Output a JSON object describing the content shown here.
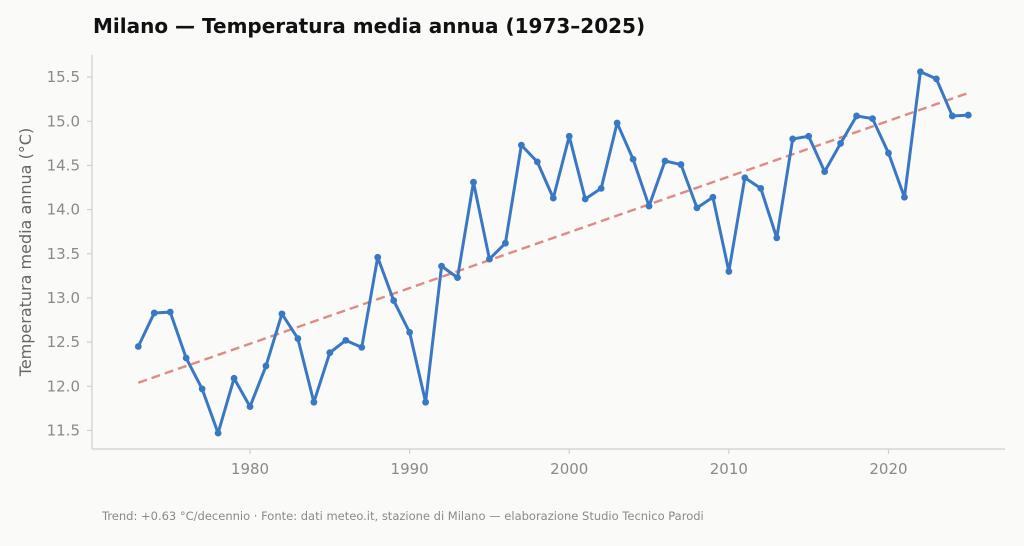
{
  "chart_data": {
    "type": "line",
    "title": "Milano — Temperatura media annua (1973–2025)",
    "xlabel": "",
    "ylabel": "Temperatura media annua (°C)",
    "xlim": [
      1970.1,
      2027.3
    ],
    "ylim": [
      11.29,
      15.75
    ],
    "x_ticks": [
      1980,
      1990,
      2000,
      2010,
      2020
    ],
    "x_tick_labels": [
      "1980",
      "1990",
      "2000",
      "2010",
      "2020"
    ],
    "y_ticks": [
      11.5,
      12.0,
      12.5,
      13.0,
      13.5,
      14.0,
      14.5,
      15.0,
      15.5
    ],
    "y_tick_labels": [
      "11.5",
      "12.0",
      "12.5",
      "13.0",
      "13.5",
      "14.0",
      "14.5",
      "15.0",
      "15.5"
    ],
    "grid": false,
    "series": [
      {
        "color": "#3a78c3",
        "x": [
          1973,
          1974,
          1975,
          1976,
          1977,
          1978,
          1979,
          1980,
          1981,
          1982,
          1983,
          1984,
          1985,
          1986,
          1987,
          1988,
          1989,
          1990,
          1991,
          1992,
          1993,
          1994,
          1995,
          1996,
          1997,
          1998,
          1999,
          2000,
          2001,
          2002,
          2003,
          2004,
          2005,
          2006,
          2007,
          2008,
          2009,
          2010,
          2011,
          2012,
          2013,
          2014,
          2015,
          2016,
          2017,
          2018,
          2019,
          2020,
          2021,
          2022,
          2023,
          2024,
          2025
        ],
        "values": [
          12.45,
          12.83,
          12.84,
          12.32,
          11.97,
          11.47,
          12.09,
          11.77,
          12.23,
          12.82,
          12.54,
          11.82,
          12.38,
          12.52,
          12.44,
          13.46,
          12.97,
          12.61,
          11.82,
          13.36,
          13.23,
          14.31,
          13.44,
          13.62,
          14.73,
          14.54,
          14.13,
          14.83,
          14.12,
          14.24,
          14.98,
          14.57,
          14.04,
          14.55,
          14.51,
          14.02,
          14.14,
          13.3,
          14.36,
          14.24,
          13.68,
          14.8,
          14.83,
          14.43,
          14.75,
          15.06,
          15.03,
          14.64,
          14.14,
          15.56,
          15.48,
          15.06,
          15.07
        ]
      }
    ],
    "trend": {
      "color": "#e08a84",
      "x": [
        1973,
        2025
      ],
      "values": [
        12.04,
        15.32
      ],
      "style": "dashed"
    },
    "footer": "Trend: +0.63 °C/decennio · Fonte: dati meteo.it, stazione di Milano — elaborazione Studio Tecnico Parodi"
  }
}
